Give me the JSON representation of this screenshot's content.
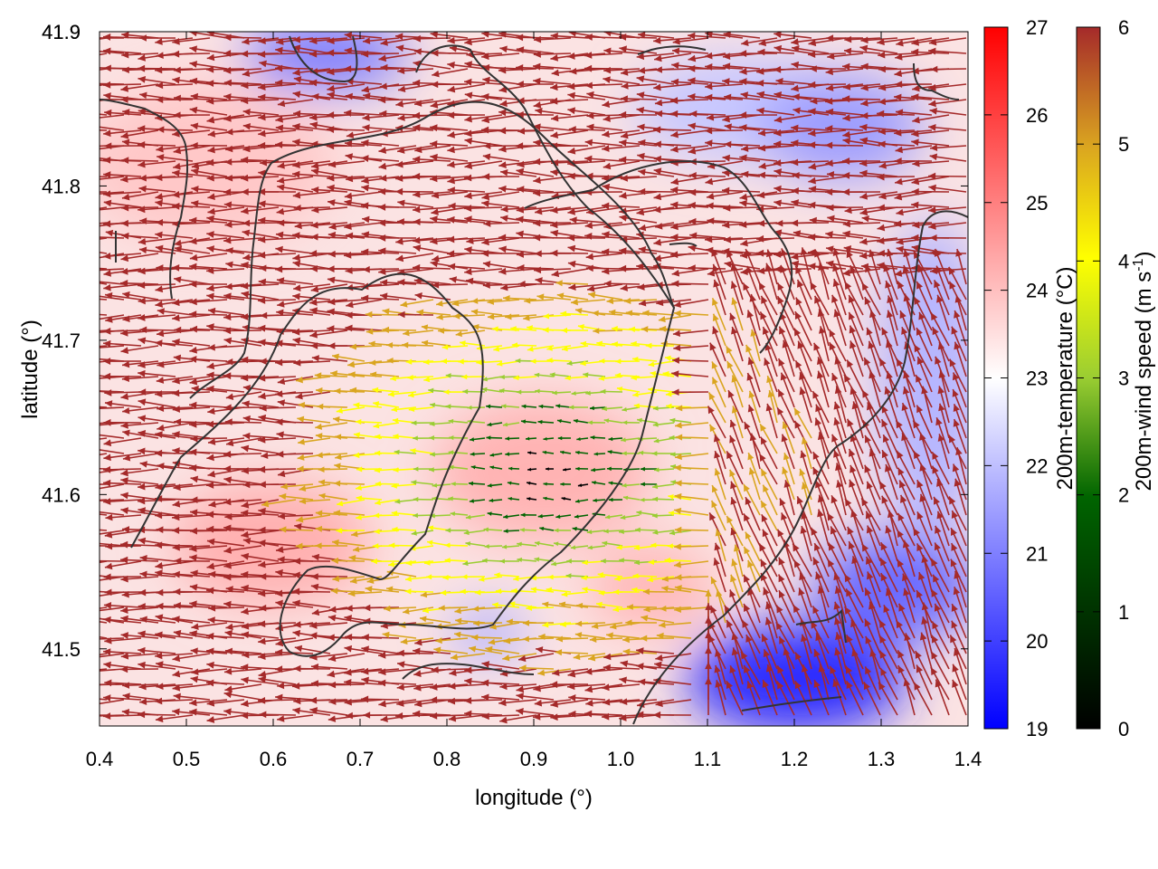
{
  "chart_data": {
    "type": "heatmap",
    "title": "",
    "xlabel": "longitude (°)",
    "ylabel": "latitude (°)",
    "xlim": [
      0.4,
      1.4
    ],
    "ylim": [
      41.45,
      41.9
    ],
    "x_ticks": [
      "0.4",
      "0.5",
      "0.6",
      "0.7",
      "0.8",
      "0.9",
      "1.0",
      "1.1",
      "1.2",
      "1.3",
      "1.4"
    ],
    "y_ticks": [
      "41.5",
      "41.6",
      "41.7",
      "41.8",
      "41.9"
    ],
    "grid": false,
    "overlay": "wind vectors coloured by speed, coastline contour",
    "colorbars": [
      {
        "name": "temperature",
        "label": "200m-temperature (°C)",
        "range": [
          19,
          27
        ],
        "ticks": [
          "19",
          "20",
          "21",
          "22",
          "23",
          "24",
          "25",
          "26",
          "27"
        ],
        "colors": [
          "#0000ff",
          "#ffffff",
          "#ff0000"
        ]
      },
      {
        "name": "wind",
        "label_main": "200m-wind speed (m s",
        "label_sup": "-1",
        "label_end": ")",
        "range": [
          0,
          6
        ],
        "ticks": [
          "0",
          "1",
          "2",
          "3",
          "4",
          "5",
          "6"
        ],
        "colors": [
          "#000000",
          "#006400",
          "#9acd32",
          "#ffff00",
          "#daa520",
          "#a52a2a"
        ]
      }
    ]
  }
}
